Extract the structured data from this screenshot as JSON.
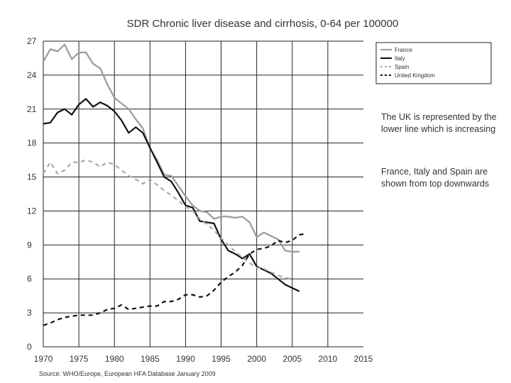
{
  "chart_data": {
    "type": "line",
    "title": "SDR Chronic liver disease and cirrhosis, 0-64 per 100000",
    "xlabel": "",
    "ylabel": "",
    "xlim": [
      1970,
      2015
    ],
    "ylim": [
      0,
      27
    ],
    "x_ticks": [
      1970,
      1975,
      1980,
      1985,
      1990,
      1995,
      2000,
      2005,
      2010,
      2015
    ],
    "y_ticks": [
      0,
      3,
      6,
      9,
      12,
      15,
      18,
      21,
      24,
      27
    ],
    "grid": true,
    "legend_position": "top-right",
    "series": [
      {
        "name": "France",
        "color": "#9a9a9a",
        "style": "solid",
        "x": [
          1970,
          1971,
          1972,
          1973,
          1974,
          1975,
          1976,
          1977,
          1978,
          1979,
          1980,
          1981,
          1982,
          1983,
          1984,
          1985,
          1986,
          1987,
          1988,
          1989,
          1990,
          1991,
          1992,
          1993,
          1994,
          1995,
          1996,
          1997,
          1998,
          1999,
          2000,
          2001,
          2002,
          2003,
          2004,
          2005,
          2006
        ],
        "y": [
          25.2,
          26.3,
          26.1,
          26.7,
          25.4,
          26.0,
          26.0,
          25.0,
          24.6,
          23.2,
          22.0,
          21.5,
          21.0,
          20.1,
          19.3,
          17.5,
          16.5,
          15.2,
          15.1,
          14.2,
          13.3,
          12.5,
          12.0,
          11.9,
          11.3,
          11.5,
          11.5,
          11.4,
          11.5,
          11.0,
          9.7,
          10.1,
          9.8,
          9.5,
          8.5,
          8.4,
          8.4
        ]
      },
      {
        "name": "Italy",
        "color": "#111111",
        "style": "solid",
        "x": [
          1970,
          1971,
          1972,
          1973,
          1974,
          1975,
          1976,
          1977,
          1978,
          1979,
          1980,
          1981,
          1982,
          1983,
          1984,
          1985,
          1986,
          1987,
          1988,
          1989,
          1990,
          1991,
          1992,
          1993,
          1994,
          1995,
          1996,
          1997,
          1998,
          1999,
          2000,
          2001,
          2002,
          2003,
          2004,
          2005,
          2006
        ],
        "y": [
          19.7,
          19.8,
          20.7,
          21.0,
          20.5,
          21.4,
          21.9,
          21.2,
          21.6,
          21.3,
          20.8,
          20.0,
          18.9,
          19.4,
          18.9,
          17.6,
          16.3,
          15.0,
          14.6,
          13.6,
          12.5,
          12.3,
          11.1,
          11.0,
          10.9,
          9.5,
          8.5,
          8.2,
          7.8,
          8.2,
          7.1,
          6.8,
          6.5,
          6.0,
          5.5,
          5.2,
          4.9
        ]
      },
      {
        "name": "Spain",
        "color": "#aaaaaa",
        "style": "dashed",
        "x": [
          1970,
          1971,
          1972,
          1973,
          1974,
          1975,
          1976,
          1977,
          1978,
          1979,
          1980,
          1981,
          1982,
          1983,
          1984,
          1985,
          1986,
          1987,
          1988,
          1989,
          1990,
          1991,
          1992,
          1993,
          1994,
          1995,
          1996,
          1997,
          1998,
          1999,
          2000,
          2001,
          2002,
          2003,
          2004,
          2005
        ],
        "y": [
          15.3,
          16.3,
          15.3,
          15.6,
          16.3,
          16.3,
          16.5,
          16.3,
          15.9,
          16.3,
          16.1,
          15.6,
          15.1,
          14.8,
          14.4,
          14.8,
          14.3,
          13.8,
          13.4,
          12.9,
          12.4,
          12.0,
          11.3,
          10.8,
          10.3,
          9.6,
          9.0,
          8.4,
          7.9,
          7.4,
          7.0,
          6.9,
          6.6,
          6.3,
          6.1,
          6.0
        ]
      },
      {
        "name": "United Kingdom",
        "color": "#111111",
        "style": "dashed",
        "x": [
          1970,
          1971,
          1972,
          1973,
          1974,
          1975,
          1976,
          1977,
          1978,
          1979,
          1980,
          1981,
          1982,
          1983,
          1984,
          1985,
          1986,
          1987,
          1988,
          1989,
          1990,
          1991,
          1992,
          1993,
          1994,
          1995,
          1996,
          1997,
          1998,
          1999,
          2000,
          2001,
          2002,
          2003,
          2004,
          2005,
          2006,
          2007
        ],
        "y": [
          1.9,
          2.1,
          2.4,
          2.6,
          2.7,
          2.8,
          2.8,
          2.8,
          3.0,
          3.3,
          3.4,
          3.7,
          3.3,
          3.4,
          3.5,
          3.6,
          3.6,
          4.0,
          4.0,
          4.2,
          4.6,
          4.6,
          4.4,
          4.5,
          5.0,
          5.7,
          6.2,
          6.6,
          7.2,
          8.2,
          8.6,
          8.7,
          8.9,
          9.4,
          9.2,
          9.4,
          9.9,
          10.0
        ]
      }
    ]
  },
  "notes": [
    "The UK is represented by the lower line which is increasing",
    "France, Italy and Spain are shown from top downwards"
  ],
  "source": "Source: WHO/Europe, European HFA Database January 2009"
}
